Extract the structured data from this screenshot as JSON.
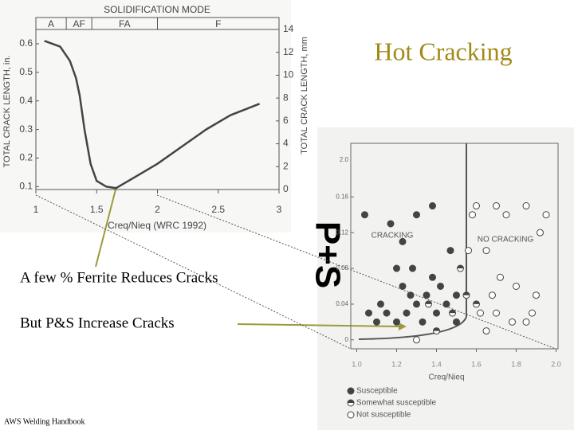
{
  "slide": {
    "title": "Hot Cracking",
    "caption_1": "A few % Ferrite Reduces Cracks",
    "caption_2": "But P&S Increase Cracks",
    "source": "AWS Welding Handbook",
    "side_label": "P+S"
  },
  "chart_data": [
    {
      "type": "line",
      "title": "SOLIDIFICATION MODE",
      "x_label": "Creq/Nieq (WRC 1992)",
      "y_label": "TOTAL CRACK LENGTH, in.",
      "y2_label": "TOTAL CRACK LENGTH, mm",
      "modes": [
        {
          "label": "A",
          "start": 1,
          "end": 1.25
        },
        {
          "label": "AF",
          "start": 1.25,
          "end": 1.46
        },
        {
          "label": "FA",
          "start": 1.46,
          "end": 2
        },
        {
          "label": "F",
          "start": 2,
          "end": 3
        }
      ],
      "x": [
        1.07,
        1.2,
        1.28,
        1.33,
        1.36,
        1.4,
        1.45,
        1.5,
        1.58,
        1.66,
        1.8,
        2.0,
        2.2,
        2.4,
        2.6,
        2.84
      ],
      "series": [
        {
          "name": "Crack length",
          "color": "#444444",
          "values": [
            0.61,
            0.59,
            0.54,
            0.48,
            0.42,
            0.3,
            0.18,
            0.12,
            0.1,
            0.095,
            0.13,
            0.18,
            0.24,
            0.3,
            0.35,
            0.39
          ]
        }
      ],
      "xlim": [
        1,
        3
      ],
      "xticks": [
        1,
        1.5,
        2,
        2.5,
        3
      ],
      "ylim": [
        0.09,
        0.65
      ],
      "yticks": [
        0.1,
        0.2,
        0.3,
        0.4,
        0.5,
        0.6
      ],
      "y2lim": [
        0,
        14
      ],
      "y2ticks": [
        0,
        2,
        4,
        6,
        8,
        10,
        12,
        14
      ]
    },
    {
      "type": "scatter",
      "x_label": "Creq/Nieq",
      "annotations": [
        "CRACKING",
        "NO CRACKING"
      ],
      "axis_break_label": "2.0",
      "boundary_x": 1.55,
      "legend": "bottom-left",
      "xlim": [
        0.97,
        2.01
      ],
      "xticks": [
        {
          "value": 1,
          "label": "1.0"
        },
        {
          "value": 1.2,
          "label": "1.2"
        },
        {
          "value": 1.4,
          "label": "1.4"
        },
        {
          "value": 1.6,
          "label": "1.6"
        },
        {
          "value": 1.8,
          "label": "1.8"
        },
        {
          "value": 2,
          "label": "2.0"
        }
      ],
      "ylim": [
        -0.01,
        0.22
      ],
      "yticks": [
        {
          "value": 0,
          "label": "0"
        },
        {
          "value": 0.04,
          "label": "0.04"
        },
        {
          "value": 0.08,
          "label": "0.08"
        },
        {
          "value": 0.12,
          "label": "0.12"
        },
        {
          "value": 0.16,
          "label": "0.16"
        }
      ],
      "series": [
        {
          "name": "Susceptible",
          "color": "#444444",
          "x": [
            1.04,
            1.17,
            1.23,
            1.3,
            1.38,
            1.2,
            1.23,
            1.27,
            1.3,
            1.35,
            1.4,
            1.45,
            1.15,
            1.1,
            1.2,
            1.33,
            1.5,
            1.5,
            1.42,
            1.28,
            1.38,
            1.47,
            1.06,
            1.12,
            1.25
          ],
          "values": [
            0.14,
            0.13,
            0.11,
            0.14,
            0.15,
            0.08,
            0.06,
            0.05,
            0.04,
            0.05,
            0.03,
            0.04,
            0.03,
            0.02,
            0.02,
            0.02,
            0.02,
            0.05,
            0.06,
            0.08,
            0.07,
            0.1,
            0.03,
            0.04,
            0.03
          ]
        },
        {
          "name": "Somewhat susceptible",
          "color": "#444444",
          "x": [
            1.55,
            1.48,
            1.4,
            1.6,
            1.52,
            1.36
          ],
          "values": [
            0.05,
            0.03,
            0.01,
            0.04,
            0.08,
            0.04
          ]
        },
        {
          "name": "Not susceptible",
          "color": "#444444",
          "x": [
            1.6,
            1.7,
            1.75,
            1.85,
            1.95,
            1.58,
            1.65,
            1.72,
            1.8,
            1.9,
            1.62,
            1.7,
            1.78,
            1.85,
            1.65,
            1.3,
            1.68,
            1.88,
            1.92,
            1.56
          ],
          "values": [
            0.15,
            0.15,
            0.14,
            0.15,
            0.14,
            0.14,
            0.1,
            0.07,
            0.06,
            0.05,
            0.03,
            0.03,
            0.02,
            0.02,
            0.01,
            0.0,
            0.05,
            0.03,
            0.12,
            0.1
          ]
        }
      ]
    }
  ]
}
